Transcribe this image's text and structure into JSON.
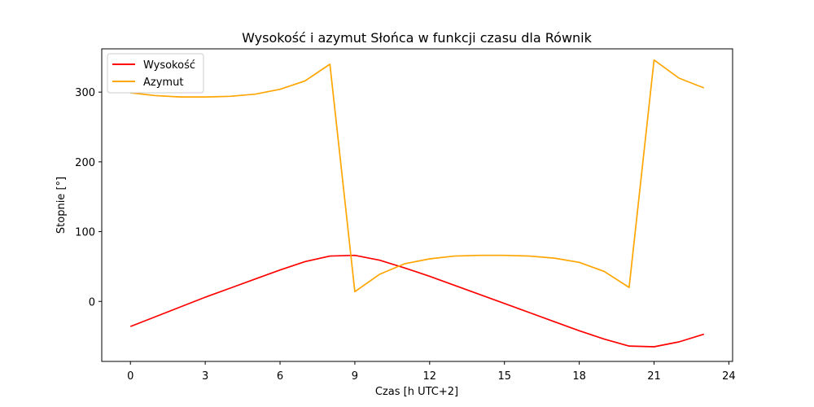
{
  "chart_data": {
    "type": "line",
    "title": "Wysokość i azymut Słońca w funkcji czasu dla Równik",
    "xlabel": "Czas [h UTC+2]",
    "ylabel": "Stopnie [°]",
    "xlim": [
      -1.15,
      24.15
    ],
    "ylim": [
      -86,
      362
    ],
    "xticks": [
      0,
      3,
      6,
      9,
      12,
      15,
      18,
      21,
      24
    ],
    "yticks": [
      0,
      100,
      200,
      300
    ],
    "legend_position": "upper-left",
    "x": [
      0,
      1,
      2,
      3,
      4,
      5,
      6,
      7,
      8,
      9,
      10,
      11,
      12,
      13,
      14,
      15,
      16,
      17,
      18,
      19,
      20,
      21,
      22,
      23
    ],
    "series": [
      {
        "name": "Wysokość",
        "color": "#ff0000",
        "values": [
          -36,
          -22,
          -8,
          6,
          19,
          32,
          45,
          57,
          65,
          66,
          59,
          48,
          36,
          23,
          10,
          -3,
          -16,
          -29,
          -42,
          -54,
          -64,
          -65,
          -58,
          -47
        ]
      },
      {
        "name": "Azymut",
        "color": "#ffa500",
        "values": [
          299,
          295,
          293,
          293,
          294,
          297,
          304,
          316,
          340,
          14,
          39,
          54,
          61,
          65,
          66,
          66,
          65,
          62,
          56,
          43,
          20,
          346,
          320,
          306
        ]
      }
    ]
  }
}
